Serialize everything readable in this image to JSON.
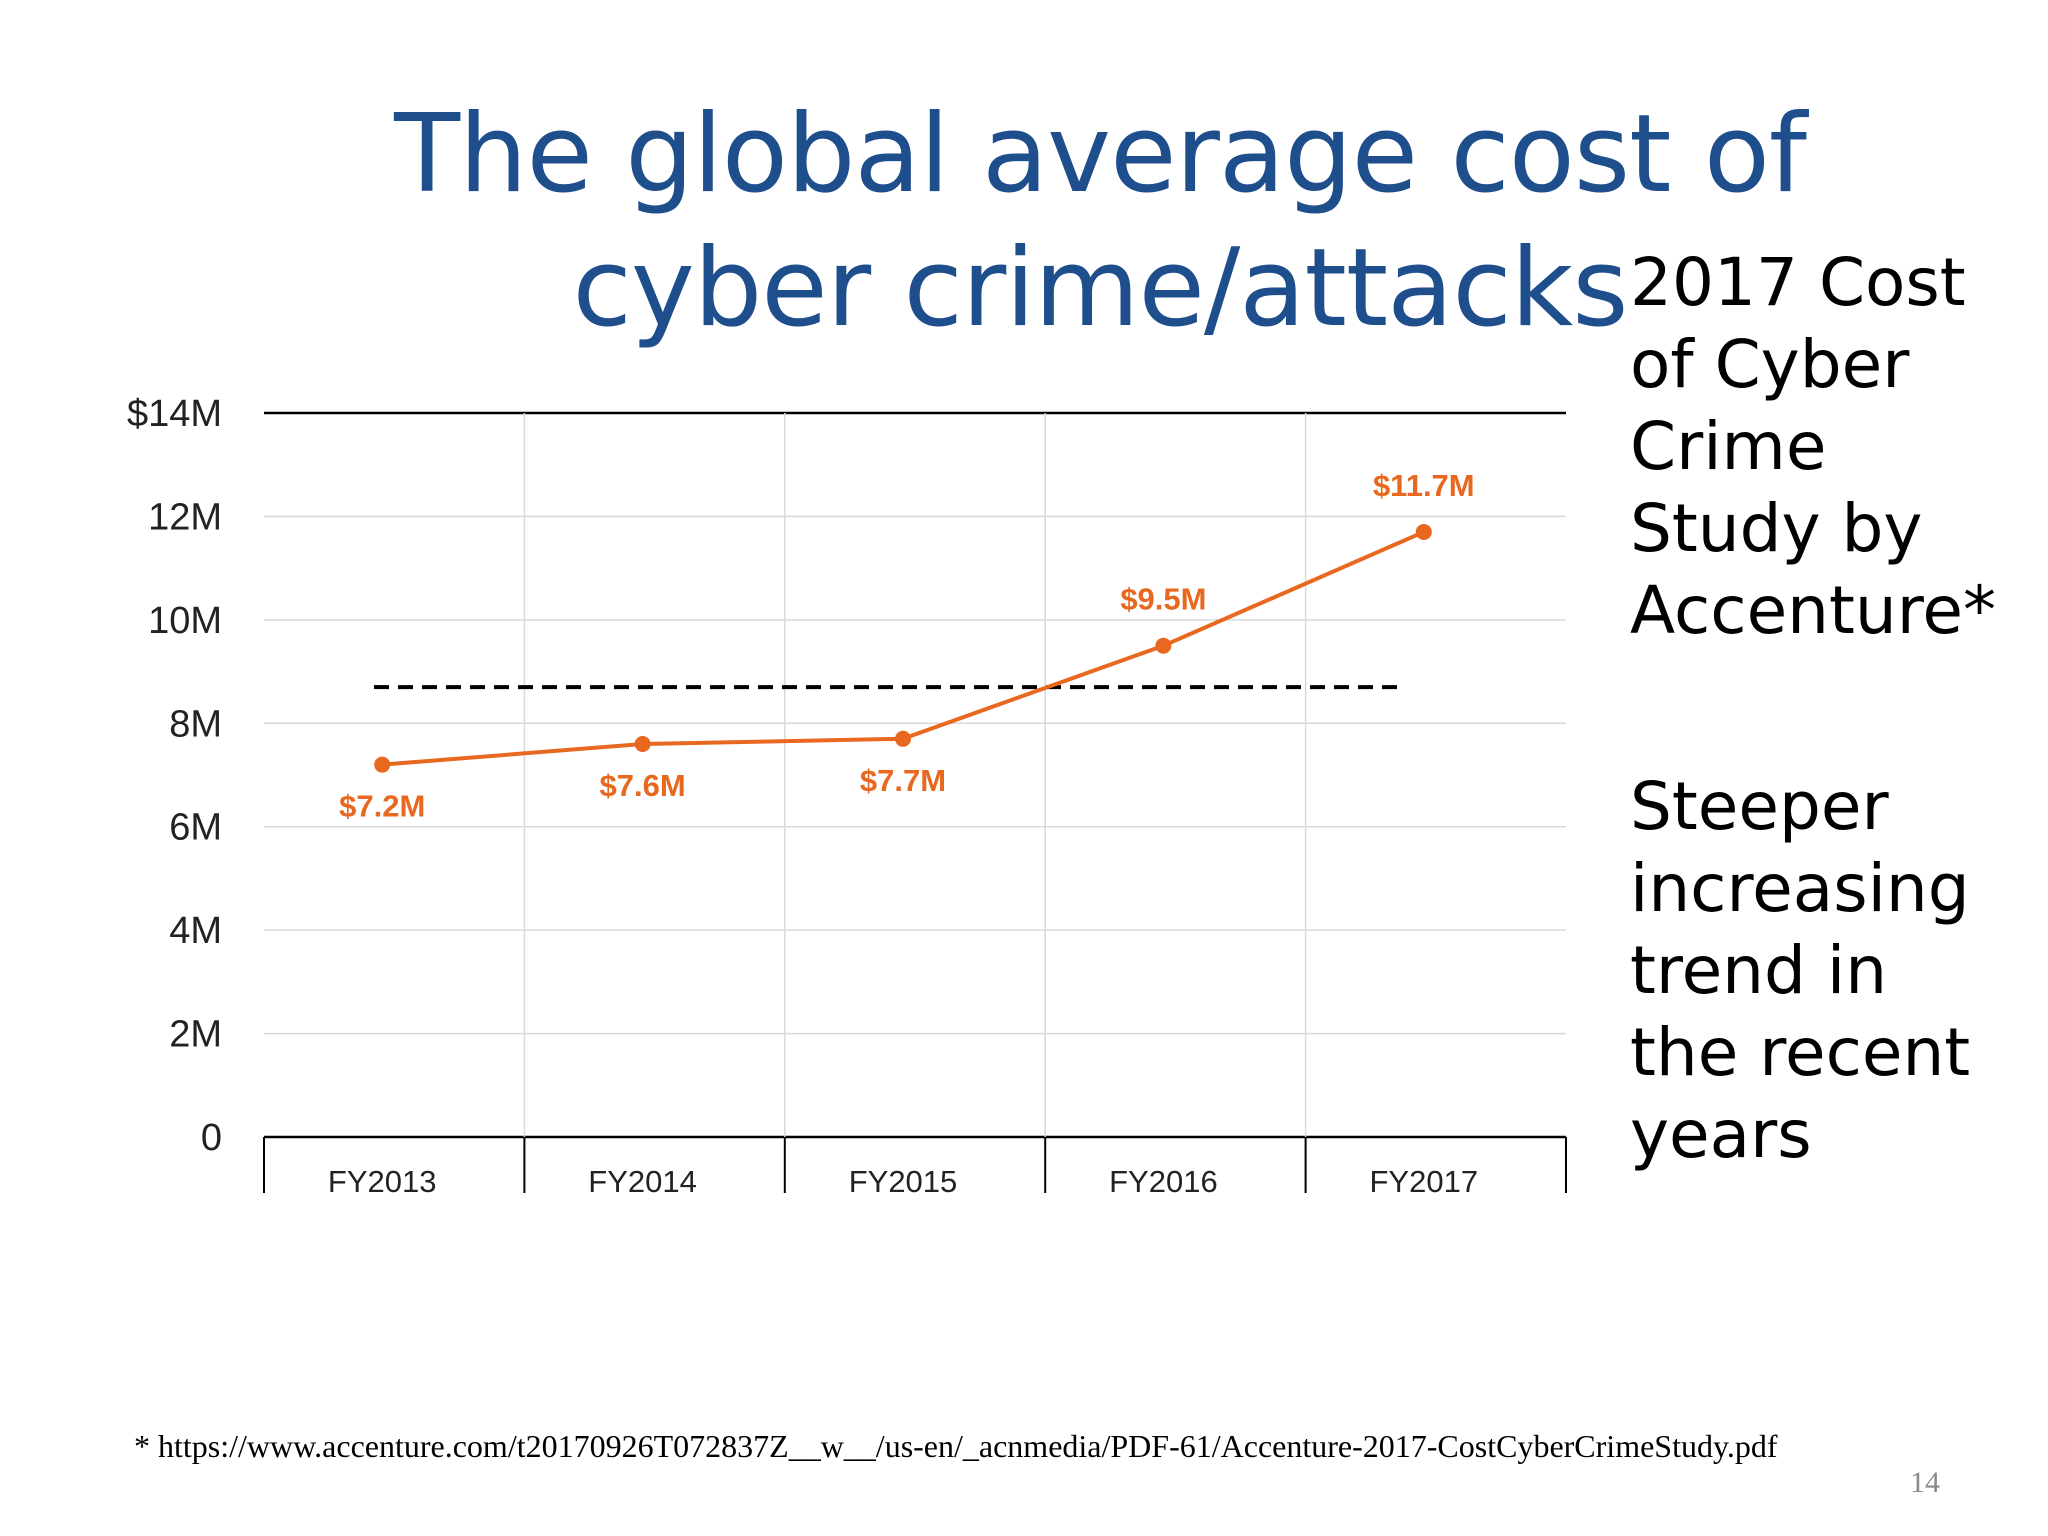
{
  "slide": {
    "title": "The global average cost of cyber crime/attacks",
    "side_text_1": [
      "2017 Cost",
      "of Cyber",
      "Crime",
      "Study by",
      "Accenture*"
    ],
    "side_text_2": [
      "Steeper",
      "increasing",
      "trend in",
      "the recent",
      "years"
    ],
    "footnote": "* https://www.accenture.com/t20170926T072837Z__w__/us-en/_acnmedia/PDF-61/Accenture-2017-CostCyberCrimeStudy.pdf",
    "page_number": "14"
  },
  "colors": {
    "title": "#1f4e8c",
    "series": "#e8681f",
    "grid": "#d9d9d9",
    "axis": "#000000"
  },
  "chart_data": {
    "type": "line",
    "title": "",
    "xlabel": "",
    "ylabel": "",
    "categories": [
      "FY2013",
      "FY2014",
      "FY2015",
      "FY2016",
      "FY2017"
    ],
    "series": [
      {
        "values": [
          7.2,
          7.6,
          7.7,
          9.5,
          11.7
        ]
      }
    ],
    "data_labels": [
      "$7.2M",
      "$7.6M",
      "$7.7M",
      "$9.5M",
      "$11.7M"
    ],
    "ylim": [
      0,
      14
    ],
    "y_ticks": [
      0,
      2,
      4,
      6,
      8,
      10,
      12,
      14
    ],
    "y_tick_labels": [
      "0",
      "2M",
      "4M",
      "6M",
      "8M",
      "10M",
      "12M",
      "$14M"
    ],
    "reference_line": {
      "value": 8.7,
      "style": "dashed"
    },
    "grid": true,
    "legend": "none"
  }
}
